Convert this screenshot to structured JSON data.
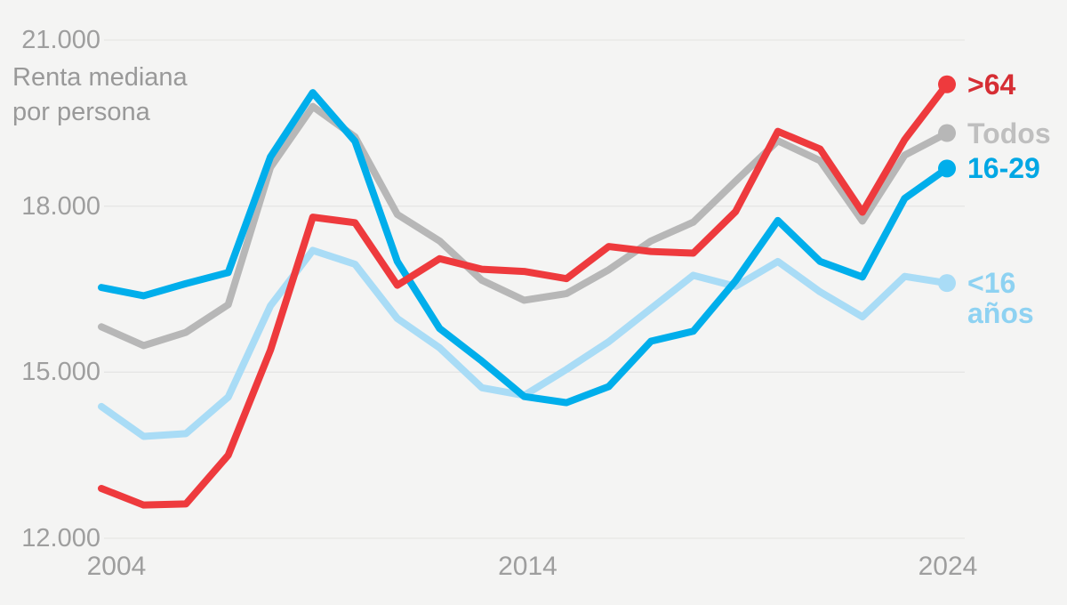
{
  "chart_data": {
    "type": "line",
    "title": "Renta mediana por persona",
    "title_lines": [
      "Renta mediana",
      "por persona"
    ],
    "x": [
      2004,
      2005,
      2006,
      2007,
      2008,
      2009,
      2010,
      2011,
      2012,
      2013,
      2014,
      2015,
      2016,
      2017,
      2018,
      2019,
      2020,
      2021,
      2022,
      2023,
      2024
    ],
    "x_tick_years": [
      2004,
      2014,
      2024
    ],
    "x_tick_labels": [
      "2004",
      "2014",
      "2024"
    ],
    "y_ticks": [
      21000,
      18000,
      15000,
      12000
    ],
    "y_tick_labels": [
      "21.000",
      "18.000",
      "15.000",
      "12.000"
    ],
    "ylim": [
      12000,
      21000
    ],
    "grid": "horizontal",
    "legend_position": "right-of-line-ends",
    "background_color": "#f4f4f3",
    "gridline_color": "#e6e6e5",
    "axis_text_color": "#9e9e9e",
    "series": [
      {
        "name": "mayores-de-64",
        "legend": ">64",
        "color": "#ee3a3d",
        "label_color": "#d62e34",
        "z": 4,
        "values": [
          12900,
          12600,
          12620,
          13500,
          15400,
          17800,
          17700,
          16570,
          17050,
          16860,
          16820,
          16690,
          17270,
          17180,
          17150,
          17900,
          19350,
          19030,
          17890,
          19200,
          20200
        ]
      },
      {
        "name": "todos",
        "legend": "Todos",
        "color": "#b7b7b7",
        "label_color": "#bfbfbf",
        "z": 2,
        "values": [
          15820,
          15480,
          15720,
          16220,
          18700,
          19800,
          19250,
          17850,
          17370,
          16660,
          16300,
          16420,
          16850,
          17370,
          17710,
          18450,
          19180,
          18820,
          17730,
          18920,
          19320
        ]
      },
      {
        "name": "16-29",
        "legend": "16-29",
        "color": "#00aeeb",
        "label_color": "#00a7e4",
        "z": 3,
        "values": [
          16530,
          16380,
          16600,
          16800,
          18890,
          20050,
          19170,
          17000,
          15790,
          15200,
          14560,
          14450,
          14740,
          15560,
          15740,
          16650,
          17740,
          17000,
          16720,
          18140,
          18680
        ]
      },
      {
        "name": "menores-de-16",
        "legend": "<16 años",
        "color": "#a9dcf6",
        "label_color": "#8ed2f2",
        "z": 1,
        "values": [
          14380,
          13840,
          13890,
          14550,
          16200,
          17200,
          16950,
          15970,
          15440,
          14720,
          14580,
          15050,
          15550,
          16150,
          16750,
          16550,
          17000,
          16450,
          16000,
          16730,
          16610
        ]
      }
    ]
  }
}
